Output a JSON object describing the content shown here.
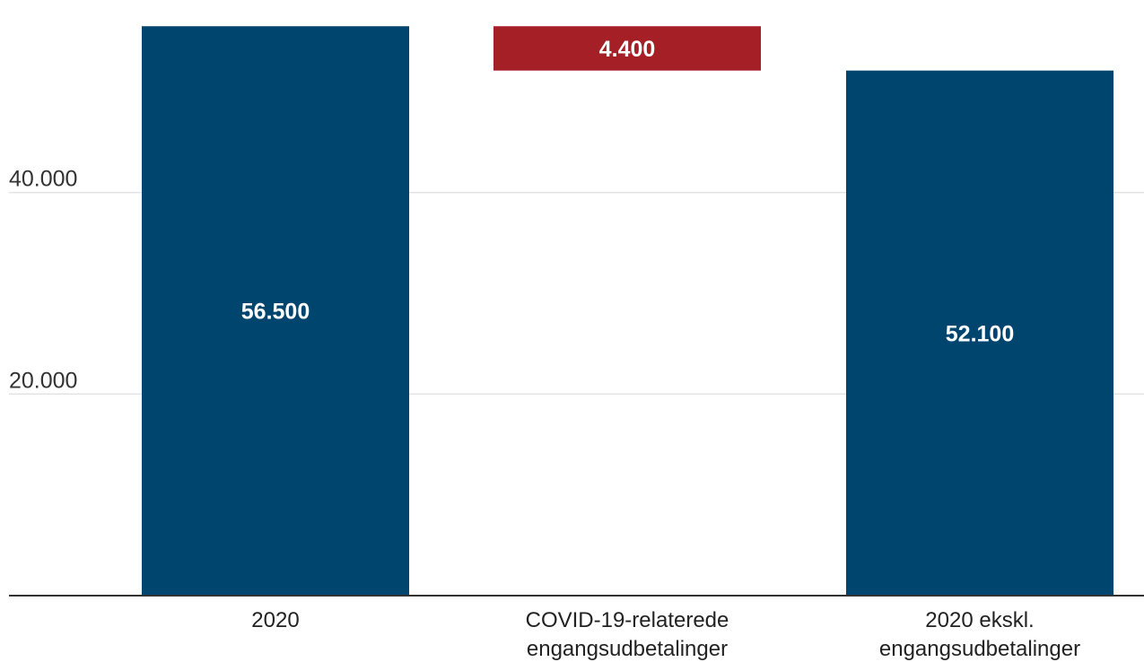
{
  "chart_data": {
    "type": "bar",
    "subtype": "waterfall",
    "title": "",
    "xlabel": "",
    "ylabel": "",
    "ylim": [
      0,
      57500
    ],
    "yticks": [
      {
        "value": 20000,
        "label": "20.000"
      },
      {
        "value": 40000,
        "label": "40.000"
      }
    ],
    "grid": true,
    "bars": [
      {
        "category_lines": [
          "2020"
        ],
        "start": 0,
        "end": 56500,
        "value_label": "56.500",
        "color": "#00456e"
      },
      {
        "category_lines": [
          "COVID-19-relaterede",
          "engangsudbetalinger"
        ],
        "start": 52100,
        "end": 56500,
        "value_label": "4.400",
        "color": "#a51f27"
      },
      {
        "category_lines": [
          "2020 ekskl.",
          "engangsudbetalinger"
        ],
        "start": 0,
        "end": 52100,
        "value_label": "52.100",
        "color": "#00456e"
      }
    ]
  }
}
